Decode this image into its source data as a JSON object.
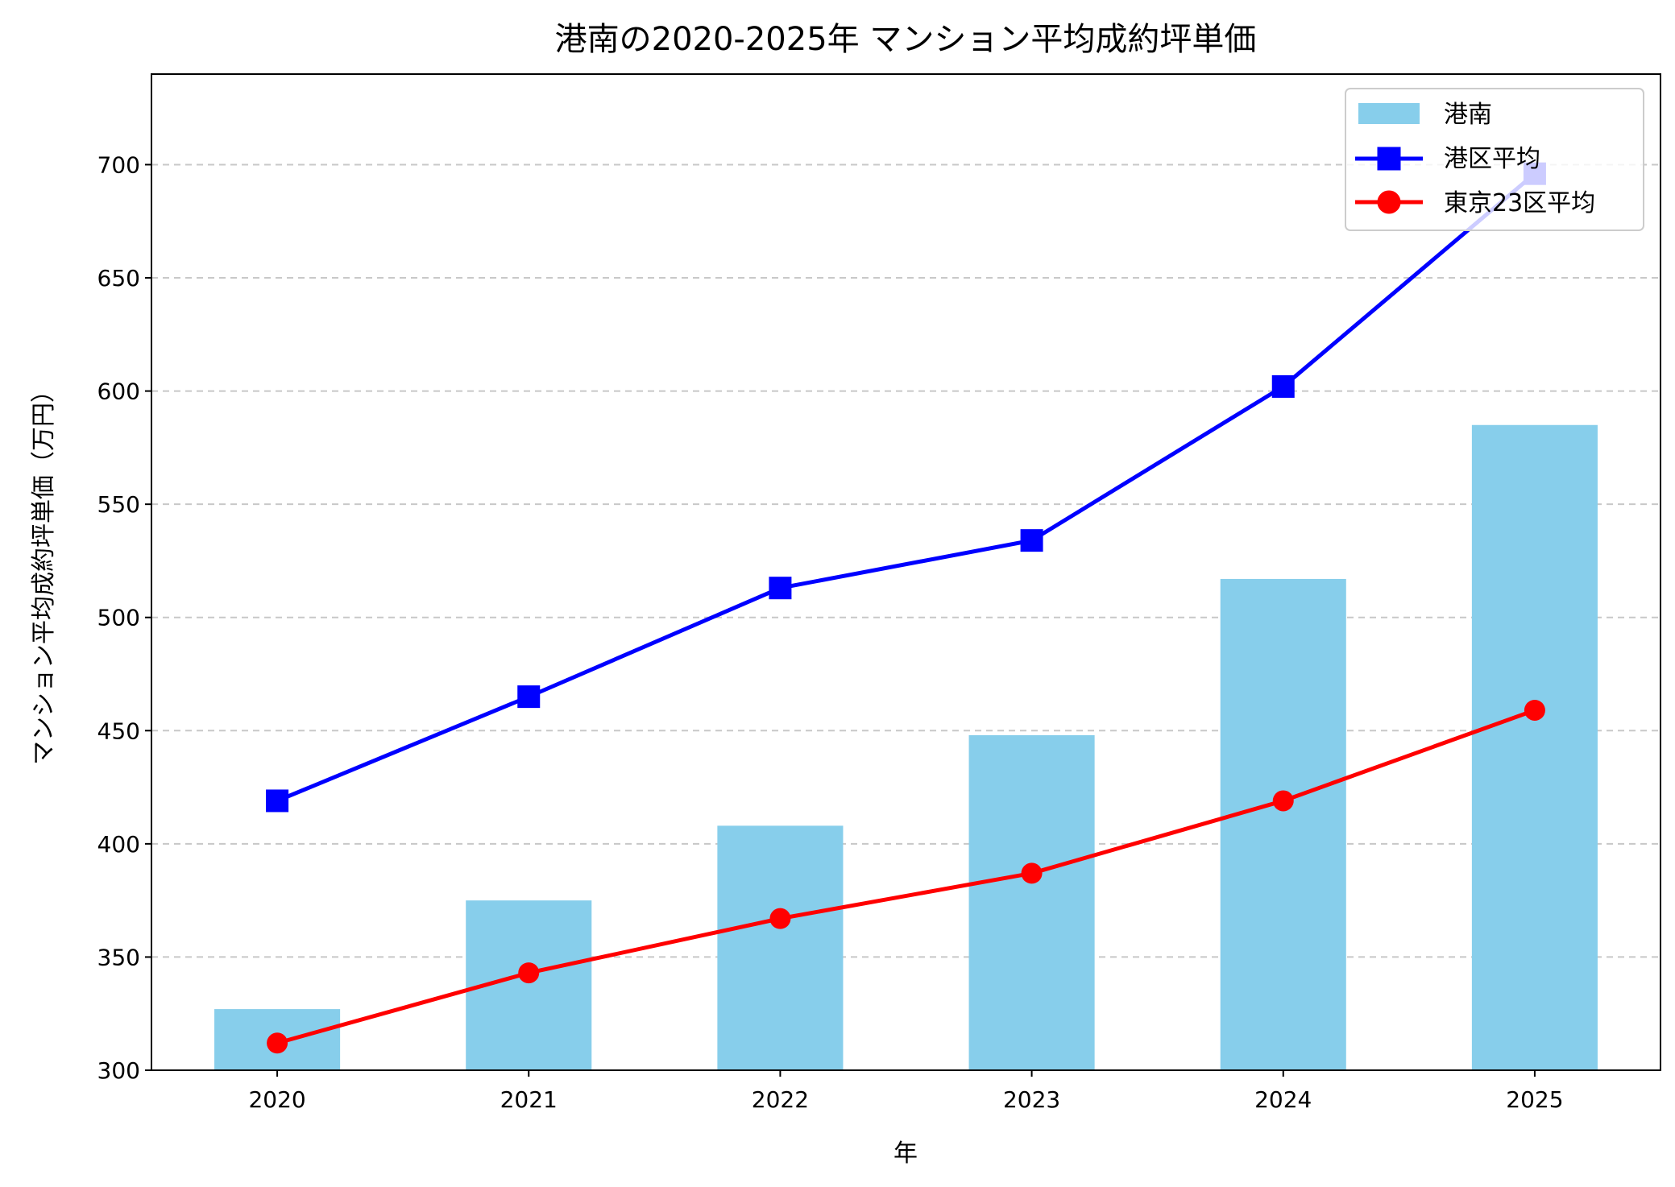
{
  "chart_data": {
    "type": "bar+line",
    "title": "港南の2020-2025年 マンション平均成約坪単価",
    "xlabel": "年",
    "ylabel": "マンション平均成約坪単価（万円）",
    "categories": [
      "2020",
      "2021",
      "2022",
      "2023",
      "2024",
      "2025"
    ],
    "ylim": [
      300,
      740
    ],
    "yticks": [
      300,
      350,
      400,
      450,
      500,
      550,
      600,
      650,
      700
    ],
    "grid": "y-dashed",
    "legend_position": "top-right",
    "series": [
      {
        "name": "港南",
        "type": "bar",
        "color": "#87CEEB",
        "values": [
          327,
          375,
          408,
          448,
          517,
          585
        ]
      },
      {
        "name": "港区平均",
        "type": "line",
        "marker": "square",
        "color": "#0000FF",
        "values": [
          419,
          465,
          513,
          534,
          602,
          696
        ]
      },
      {
        "name": "東京23区平均",
        "type": "line",
        "marker": "circle",
        "color": "#FF0000",
        "values": [
          312,
          343,
          367,
          387,
          419,
          459
        ]
      }
    ]
  }
}
